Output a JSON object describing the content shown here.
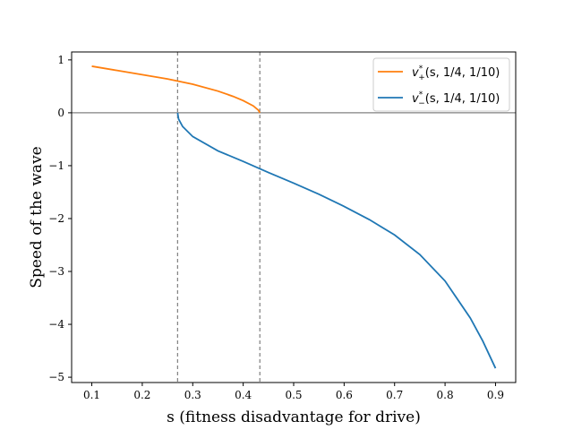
{
  "chart_data": {
    "type": "line",
    "title": "",
    "xlabel": "s (fitness disadvantage for drive)",
    "ylabel": "Speed of the wave",
    "xlim": [
      0.06,
      0.94
    ],
    "ylim": [
      -5.1,
      1.15
    ],
    "xticks": [
      0.1,
      0.2,
      0.3,
      0.4,
      0.5,
      0.6,
      0.7,
      0.8,
      0.9
    ],
    "xtick_labels": [
      "0.1",
      "0.2",
      "0.3",
      "0.4",
      "0.5",
      "0.6",
      "0.7",
      "0.8",
      "0.9"
    ],
    "yticks": [
      1,
      0,
      -1,
      -2,
      -3,
      -4,
      -5
    ],
    "ytick_labels": [
      "1",
      "0",
      "−1",
      "−2",
      "−3",
      "−4",
      "−5"
    ],
    "grid": false,
    "legend_position": "top-right",
    "hline": 0,
    "vlines": [
      0.27,
      0.433
    ],
    "series": [
      {
        "name": "v*+(s, 1/4, 1/10)",
        "label_main": "v",
        "label_sup": "*",
        "label_sub": "+",
        "label_args": "(s, 1/4, 1/10)",
        "color": "#ff7f0e",
        "x": [
          0.1,
          0.15,
          0.2,
          0.25,
          0.3,
          0.35,
          0.38,
          0.4,
          0.42,
          0.43,
          0.433
        ],
        "y": [
          0.88,
          0.8,
          0.72,
          0.64,
          0.54,
          0.41,
          0.31,
          0.23,
          0.13,
          0.05,
          0.0
        ]
      },
      {
        "name": "v*−(s, 1/4, 1/10)",
        "label_main": "v",
        "label_sup": "*",
        "label_sub": "−",
        "label_args": "(s, 1/4, 1/10)",
        "color": "#1f77b4",
        "x": [
          0.27,
          0.272,
          0.28,
          0.3,
          0.35,
          0.4,
          0.45,
          0.5,
          0.55,
          0.6,
          0.65,
          0.7,
          0.75,
          0.8,
          0.85,
          0.875,
          0.9
        ],
        "y": [
          0.0,
          -0.12,
          -0.26,
          -0.45,
          -0.72,
          -0.92,
          -1.13,
          -1.33,
          -1.54,
          -1.77,
          -2.02,
          -2.31,
          -2.68,
          -3.18,
          -3.88,
          -4.32,
          -4.83
        ]
      }
    ]
  },
  "colors": {
    "axis": "#000000",
    "reference_line": "#808080"
  }
}
